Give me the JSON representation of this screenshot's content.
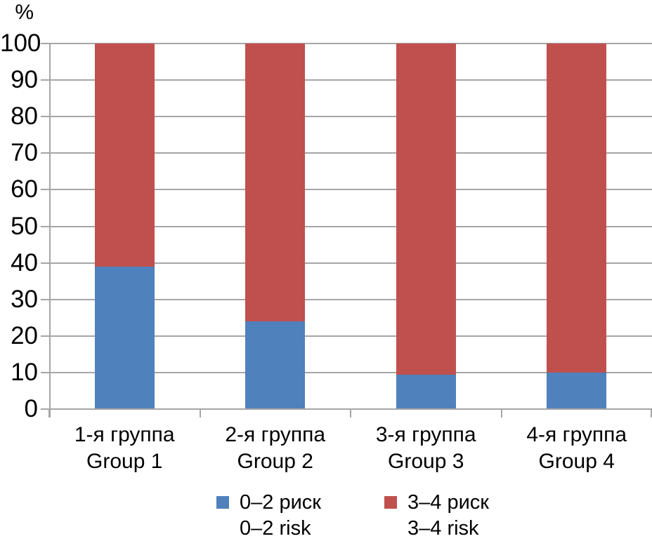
{
  "chart_data": {
    "type": "bar",
    "stacked": true,
    "title": "",
    "xlabel": "",
    "ylabel": "%",
    "ylim": [
      0,
      100
    ],
    "yticks": [
      0,
      10,
      20,
      30,
      40,
      50,
      60,
      70,
      80,
      90,
      100
    ],
    "grid": true,
    "legend_position": "bottom",
    "categories": [
      {
        "label_ru": "1-я группа",
        "label_en": "Group 1"
      },
      {
        "label_ru": "2-я группа",
        "label_en": "Group 2"
      },
      {
        "label_ru": "3-я группа",
        "label_en": "Group 3"
      },
      {
        "label_ru": "4-я группа",
        "label_en": "Group 4"
      }
    ],
    "series": [
      {
        "name_ru": "0–2 риск",
        "name_en": "0–2 risk",
        "color": "#4F81BD",
        "values": [
          39,
          24,
          9.5,
          10
        ]
      },
      {
        "name_ru": "3–4 риск",
        "name_en": "3–4 risk",
        "color": "#C0504D",
        "values": [
          61,
          76,
          90.5,
          90
        ]
      }
    ]
  },
  "colors": {
    "gridline": "#A6A6A6",
    "axis": "#A6A6A6",
    "text": "#000000",
    "background": "#FFFFFF"
  }
}
